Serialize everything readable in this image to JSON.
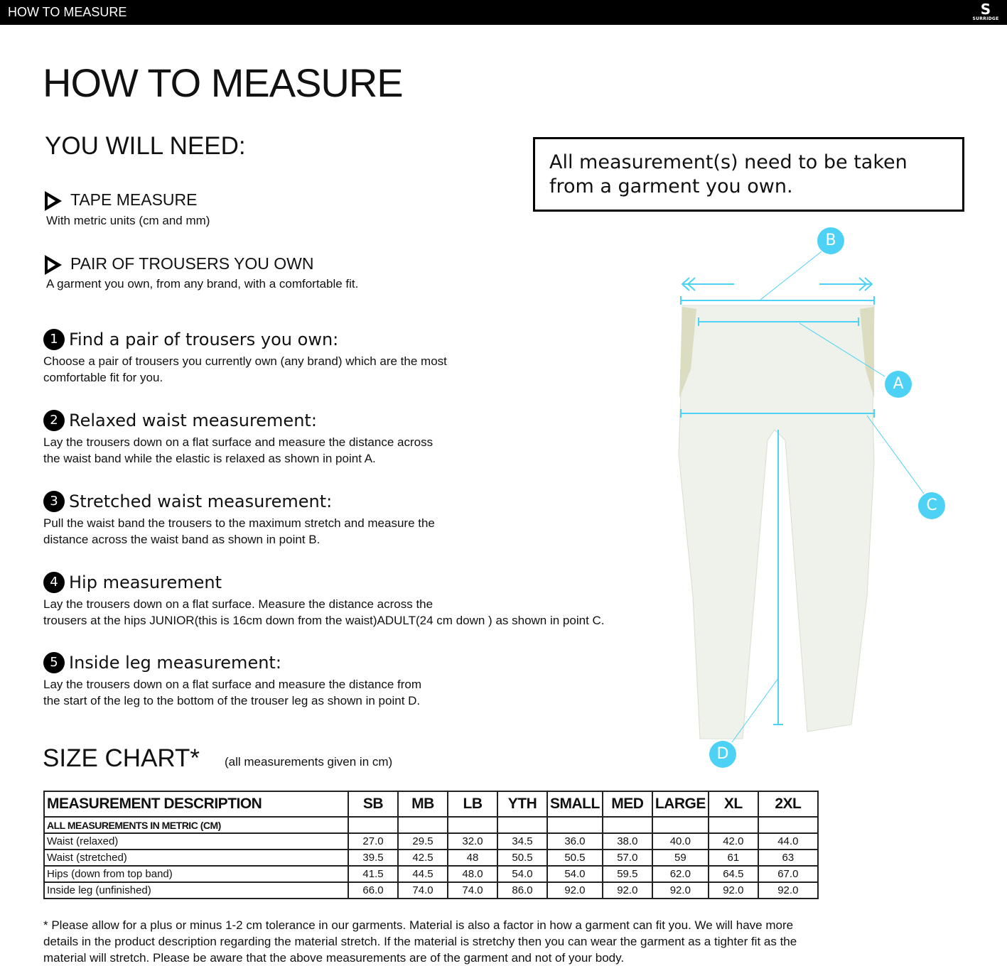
{
  "header": {
    "title": "HOW TO MEASURE",
    "logo_text": "SURRIDGE"
  },
  "page_title": "HOW TO MEASURE",
  "need": {
    "title": "YOU WILL NEED:",
    "items": [
      {
        "label": "TAPE MEASURE",
        "desc": "With metric units (cm and mm)"
      },
      {
        "label": "PAIR OF TROUSERS YOU OWN",
        "desc": "A garment you own, from any brand, with a comfortable fit."
      }
    ]
  },
  "notice": "All measurement(s) need to be taken from a garment you own.",
  "steps": [
    {
      "num": "1",
      "title": "Find a pair of trousers you own:",
      "lines": [
        "Choose a pair of trousers you currently own (any brand) which are the most",
        "comfortable fit for you."
      ]
    },
    {
      "num": "2",
      "title": "Relaxed waist measurement:",
      "lines": [
        "Lay the trousers down on a flat surface and measure the distance across",
        "the waist band while the elastic is relaxed as shown in point A."
      ]
    },
    {
      "num": "3",
      "title": "Stretched waist measurement:",
      "lines": [
        "Pull the waist band the trousers to the maximum stretch and measure the",
        "distance across the waist band as shown in point B."
      ]
    },
    {
      "num": "4",
      "title": "Hip measurement",
      "lines": [
        "Lay the trousers down on a flat surface. Measure the distance across the",
        "trousers at the hips JUNIOR(this is 16cm down from the waist)ADULT(24 cm down ) as shown in point C."
      ]
    },
    {
      "num": "5",
      "title": "Inside leg measurement:",
      "lines": [
        "Lay the trousers down on a flat surface and measure the distance from",
        "the start of the leg to the bottom of the trouser leg as shown in point D."
      ]
    }
  ],
  "diagram": {
    "labels": [
      "A",
      "B",
      "C",
      "D"
    ],
    "accent": "#4dd2f5"
  },
  "size_chart": {
    "title": "SIZE CHART*",
    "note": "(all measurements given in cm)",
    "headers": [
      "MEASUREMENT DESCRIPTION",
      "SB",
      "MB",
      "LB",
      "YTH",
      "SMALL",
      "MED",
      "LARGE",
      "XL",
      "2XL"
    ],
    "subheader": "ALL MEASUREMENTS IN METRIC (CM)",
    "rows": [
      {
        "label": "Waist (relaxed)",
        "values": [
          "27.0",
          "29.5",
          "32.0",
          "34.5",
          "36.0",
          "38.0",
          "40.0",
          "42.0",
          "44.0"
        ]
      },
      {
        "label": "Waist (stretched)",
        "values": [
          "39.5",
          "42.5",
          "48",
          "50.5",
          "50.5",
          "57.0",
          "59",
          "61",
          "63"
        ]
      },
      {
        "label": "Hips (down from top band)",
        "values": [
          "41.5",
          "44.5",
          "48.0",
          "54.0",
          "54.0",
          "59.5",
          "62.0",
          "64.5",
          "67.0"
        ]
      },
      {
        "label": "Inside leg (unfinished)",
        "values": [
          "66.0",
          "74.0",
          "74.0",
          "86.0",
          "92.0",
          "92.0",
          "92.0",
          "92.0",
          "92.0"
        ]
      }
    ]
  },
  "footnote": "* Please allow for a plus or minus 1-2 cm tolerance in our garments. Material is also a factor in how a garment can fit you. We will have more details in the product description regarding the material stretch.  If the material is stretchy then you can wear the garment as a tighter fit as the material will stretch.  Please be aware that the above measurements are of the garment and not of your body."
}
